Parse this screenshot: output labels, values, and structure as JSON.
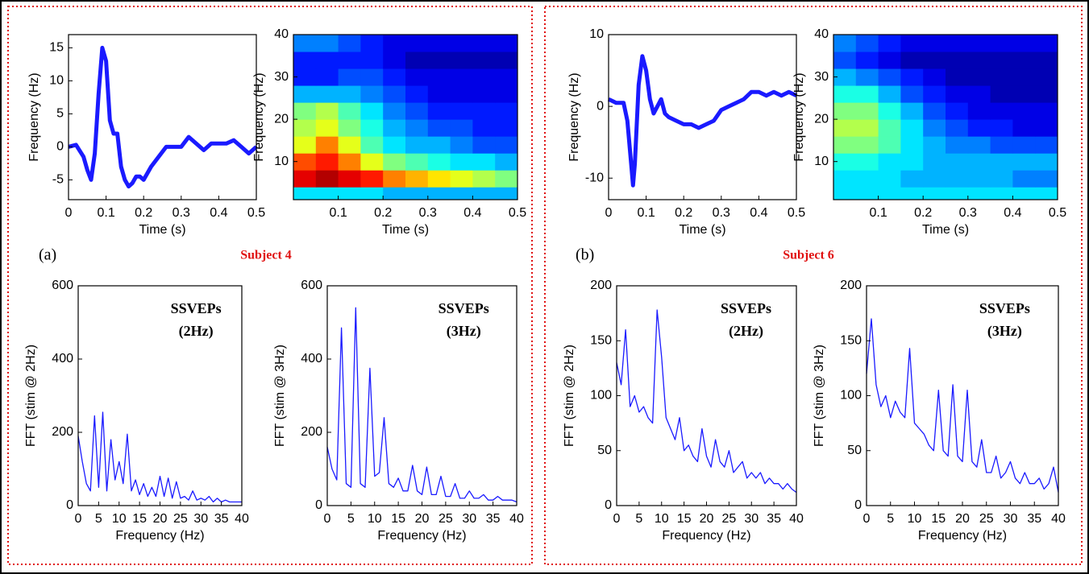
{
  "panels": [
    {
      "label": "(a)",
      "subject": "Subject 4"
    },
    {
      "label": "(b)",
      "subject": "Subject 6"
    }
  ],
  "chart_data": [
    {
      "type": "line",
      "xlabel": "Time (s)",
      "ylabel": "Frequency (Hz)",
      "color": "#1a1aff",
      "x": [
        0,
        0.02,
        0.04,
        0.05,
        0.06,
        0.07,
        0.08,
        0.09,
        0.1,
        0.11,
        0.12,
        0.13,
        0.14,
        0.15,
        0.16,
        0.17,
        0.18,
        0.19,
        0.2,
        0.22,
        0.24,
        0.26,
        0.28,
        0.3,
        0.32,
        0.34,
        0.36,
        0.38,
        0.4,
        0.42,
        0.44,
        0.46,
        0.48,
        0.5
      ],
      "values": [
        0,
        0.3,
        -1.5,
        -3.5,
        -5,
        -1,
        8,
        15,
        13,
        4,
        2,
        2,
        -3,
        -5,
        -6,
        -5.5,
        -4.5,
        -4.5,
        -5,
        -3,
        -1.5,
        0,
        0,
        0,
        1.5,
        0.5,
        -0.5,
        0.5,
        0.5,
        0.5,
        1,
        0,
        -1,
        0
      ],
      "xlim": [
        0,
        0.5
      ],
      "xticks": [
        0,
        0.1,
        0.2,
        0.3,
        0.4,
        0.5
      ],
      "ylim": [
        -8,
        17
      ],
      "yticks": [
        -5,
        0,
        5,
        10,
        15
      ]
    },
    {
      "type": "heatmap",
      "xlabel": "Time (s)",
      "ylabel": "Frequency (Hz)",
      "colormap": "jet",
      "x": [
        0.025,
        0.075,
        0.125,
        0.175,
        0.225,
        0.275,
        0.325,
        0.375,
        0.425,
        0.475
      ],
      "y": [
        2,
        6,
        10,
        14,
        18,
        22,
        26,
        30,
        34,
        38
      ],
      "z": [
        [
          0.35,
          0.35,
          0.35,
          0.35,
          0.3,
          0.3,
          0.3,
          0.3,
          0.3,
          0.3
        ],
        [
          0.9,
          0.95,
          0.9,
          0.85,
          0.75,
          0.7,
          0.65,
          0.6,
          0.55,
          0.5
        ],
        [
          0.8,
          0.85,
          0.75,
          0.6,
          0.5,
          0.45,
          0.4,
          0.35,
          0.35,
          0.3
        ],
        [
          0.6,
          0.75,
          0.6,
          0.45,
          0.35,
          0.3,
          0.3,
          0.25,
          0.2,
          0.2
        ],
        [
          0.55,
          0.6,
          0.5,
          0.4,
          0.3,
          0.25,
          0.2,
          0.2,
          0.15,
          0.15
        ],
        [
          0.5,
          0.55,
          0.45,
          0.35,
          0.25,
          0.2,
          0.15,
          0.15,
          0.15,
          0.15
        ],
        [
          0.3,
          0.3,
          0.3,
          0.25,
          0.2,
          0.15,
          0.1,
          0.1,
          0.1,
          0.1
        ],
        [
          0.15,
          0.15,
          0.2,
          0.2,
          0.15,
          0.1,
          0.1,
          0.1,
          0.1,
          0.1
        ],
        [
          0.15,
          0.15,
          0.15,
          0.15,
          0.1,
          0.05,
          0.05,
          0.05,
          0.05,
          0.05
        ],
        [
          0.25,
          0.25,
          0.2,
          0.15,
          0.1,
          0.1,
          0.1,
          0.1,
          0.1,
          0.1
        ]
      ],
      "xlim": [
        0,
        0.5
      ],
      "xticks": [
        0.1,
        0.2,
        0.3,
        0.4,
        0.5
      ],
      "ylim": [
        1,
        40
      ],
      "yticks": [
        10,
        20,
        30,
        40
      ]
    },
    {
      "type": "line",
      "xlabel": "Frequency (Hz)",
      "ylabel": "FFT (stim @ 2Hz)",
      "color": "#1a1aff",
      "annotation": [
        "SSVEPs",
        "(2Hz)"
      ],
      "x": [
        0,
        1,
        2,
        3,
        4,
        5,
        6,
        7,
        8,
        9,
        10,
        11,
        12,
        13,
        14,
        15,
        16,
        17,
        18,
        19,
        20,
        21,
        22,
        23,
        24,
        25,
        26,
        27,
        28,
        29,
        30,
        31,
        32,
        33,
        34,
        35,
        36,
        37,
        38,
        39,
        40
      ],
      "values": [
        190,
        120,
        60,
        40,
        245,
        50,
        255,
        40,
        180,
        70,
        120,
        60,
        195,
        40,
        70,
        30,
        60,
        25,
        50,
        25,
        80,
        25,
        75,
        20,
        65,
        20,
        25,
        15,
        40,
        15,
        20,
        15,
        25,
        10,
        20,
        10,
        15,
        10,
        10,
        10,
        10
      ],
      "xlim": [
        0,
        40
      ],
      "xticks": [
        0,
        5,
        10,
        15,
        20,
        25,
        30,
        35,
        40
      ],
      "ylim": [
        0,
        600
      ],
      "yticks": [
        0,
        200,
        400,
        600
      ]
    },
    {
      "type": "line",
      "xlabel": "Frequency (Hz)",
      "ylabel": "FFT (stim @ 3Hz)",
      "color": "#1a1aff",
      "annotation": [
        "SSVEPs",
        "(3Hz)"
      ],
      "x": [
        0,
        1,
        2,
        3,
        4,
        5,
        6,
        7,
        8,
        9,
        10,
        11,
        12,
        13,
        14,
        15,
        16,
        17,
        18,
        19,
        20,
        21,
        22,
        23,
        24,
        25,
        26,
        27,
        28,
        29,
        30,
        31,
        32,
        33,
        34,
        35,
        36,
        37,
        38,
        39,
        40
      ],
      "values": [
        160,
        100,
        70,
        485,
        60,
        50,
        540,
        60,
        50,
        375,
        80,
        90,
        240,
        60,
        50,
        75,
        40,
        40,
        110,
        40,
        30,
        105,
        30,
        30,
        80,
        25,
        25,
        60,
        20,
        20,
        40,
        20,
        20,
        30,
        15,
        15,
        25,
        15,
        15,
        15,
        10
      ],
      "xlim": [
        0,
        40
      ],
      "xticks": [
        0,
        5,
        10,
        15,
        20,
        25,
        30,
        35,
        40
      ],
      "ylim": [
        0,
        600
      ],
      "yticks": [
        0,
        200,
        400,
        600
      ]
    },
    {
      "type": "line",
      "xlabel": "Time (s)",
      "ylabel": "Frequency (Hz)",
      "color": "#1a1aff",
      "x": [
        0,
        0.02,
        0.04,
        0.05,
        0.06,
        0.065,
        0.07,
        0.08,
        0.09,
        0.1,
        0.11,
        0.12,
        0.13,
        0.14,
        0.15,
        0.16,
        0.18,
        0.2,
        0.22,
        0.24,
        0.26,
        0.28,
        0.3,
        0.32,
        0.34,
        0.36,
        0.38,
        0.4,
        0.42,
        0.44,
        0.46,
        0.48,
        0.5
      ],
      "values": [
        1,
        0.5,
        0.5,
        -2,
        -8,
        -11,
        -8,
        3,
        7,
        5,
        1,
        -1,
        0,
        1,
        -1,
        -1.5,
        -2,
        -2.5,
        -2.5,
        -3,
        -2.5,
        -2,
        -0.5,
        0,
        0.5,
        1,
        2,
        2,
        1.5,
        2,
        1.5,
        2,
        1.5
      ],
      "xlim": [
        0,
        0.5
      ],
      "xticks": [
        0,
        0.1,
        0.2,
        0.3,
        0.4,
        0.5
      ],
      "ylim": [
        -13,
        10
      ],
      "yticks": [
        -10,
        0,
        10
      ]
    },
    {
      "type": "heatmap",
      "xlabel": "Time (s)",
      "ylabel": "Frequency (Hz)",
      "colormap": "jet",
      "x": [
        0.025,
        0.075,
        0.125,
        0.175,
        0.225,
        0.275,
        0.325,
        0.375,
        0.425,
        0.475
      ],
      "y": [
        2,
        6,
        10,
        14,
        18,
        22,
        26,
        30,
        34,
        38
      ],
      "z": [
        [
          0.35,
          0.35,
          0.35,
          0.35,
          0.35,
          0.35,
          0.35,
          0.35,
          0.35,
          0.35
        ],
        [
          0.35,
          0.35,
          0.35,
          0.3,
          0.3,
          0.3,
          0.3,
          0.3,
          0.25,
          0.25
        ],
        [
          0.4,
          0.4,
          0.35,
          0.35,
          0.3,
          0.3,
          0.3,
          0.3,
          0.3,
          0.3
        ],
        [
          0.5,
          0.5,
          0.45,
          0.35,
          0.3,
          0.25,
          0.25,
          0.2,
          0.2,
          0.2
        ],
        [
          0.55,
          0.55,
          0.45,
          0.35,
          0.25,
          0.2,
          0.15,
          0.15,
          0.1,
          0.1
        ],
        [
          0.5,
          0.5,
          0.4,
          0.3,
          0.2,
          0.15,
          0.1,
          0.1,
          0.1,
          0.1
        ],
        [
          0.4,
          0.4,
          0.3,
          0.2,
          0.15,
          0.1,
          0.1,
          0.05,
          0.05,
          0.05
        ],
        [
          0.3,
          0.25,
          0.2,
          0.15,
          0.1,
          0.05,
          0.05,
          0.05,
          0.05,
          0.05
        ],
        [
          0.2,
          0.15,
          0.1,
          0.05,
          0.05,
          0.05,
          0.05,
          0.05,
          0.05,
          0.05
        ],
        [
          0.25,
          0.2,
          0.15,
          0.1,
          0.1,
          0.1,
          0.1,
          0.1,
          0.1,
          0.1
        ]
      ],
      "xlim": [
        0,
        0.5
      ],
      "xticks": [
        0.1,
        0.2,
        0.3,
        0.4,
        0.5
      ],
      "ylim": [
        1,
        40
      ],
      "yticks": [
        10,
        20,
        30,
        40
      ]
    },
    {
      "type": "line",
      "xlabel": "Frequency (Hz)",
      "ylabel": "FFT (stim @ 2Hz)",
      "color": "#1a1aff",
      "annotation": [
        "SSVEPs",
        "(2Hz)"
      ],
      "x": [
        0,
        1,
        2,
        3,
        4,
        5,
        6,
        7,
        8,
        9,
        10,
        11,
        12,
        13,
        14,
        15,
        16,
        17,
        18,
        19,
        20,
        21,
        22,
        23,
        24,
        25,
        26,
        27,
        28,
        29,
        30,
        31,
        32,
        33,
        34,
        35,
        36,
        37,
        38,
        39,
        40
      ],
      "values": [
        130,
        110,
        160,
        90,
        100,
        85,
        90,
        80,
        75,
        178,
        135,
        80,
        70,
        60,
        80,
        50,
        55,
        45,
        40,
        70,
        45,
        35,
        60,
        40,
        35,
        50,
        30,
        35,
        40,
        25,
        30,
        25,
        30,
        20,
        25,
        20,
        20,
        15,
        20,
        15,
        12
      ],
      "xlim": [
        0,
        40
      ],
      "xticks": [
        0,
        5,
        10,
        15,
        20,
        25,
        30,
        35,
        40
      ],
      "ylim": [
        0,
        200
      ],
      "yticks": [
        0,
        50,
        100,
        150,
        200
      ]
    },
    {
      "type": "line",
      "xlabel": "Frequency (Hz)",
      "ylabel": "FFT (stim @ 3Hz)",
      "color": "#1a1aff",
      "annotation": [
        "SSVEPs",
        "(3Hz)"
      ],
      "x": [
        0,
        1,
        2,
        3,
        4,
        5,
        6,
        7,
        8,
        9,
        10,
        11,
        12,
        13,
        14,
        15,
        16,
        17,
        18,
        19,
        20,
        21,
        22,
        23,
        24,
        25,
        26,
        27,
        28,
        29,
        30,
        31,
        32,
        33,
        34,
        35,
        36,
        37,
        38,
        39,
        40
      ],
      "values": [
        120,
        170,
        110,
        90,
        100,
        80,
        95,
        85,
        80,
        143,
        75,
        70,
        65,
        55,
        50,
        105,
        50,
        45,
        110,
        45,
        40,
        105,
        40,
        35,
        60,
        30,
        30,
        45,
        25,
        30,
        40,
        25,
        20,
        30,
        20,
        20,
        25,
        15,
        20,
        35,
        12
      ],
      "xlim": [
        0,
        40
      ],
      "xticks": [
        0,
        5,
        10,
        15,
        20,
        25,
        30,
        35,
        40
      ],
      "ylim": [
        0,
        200
      ],
      "yticks": [
        0,
        50,
        100,
        150,
        200
      ]
    }
  ]
}
